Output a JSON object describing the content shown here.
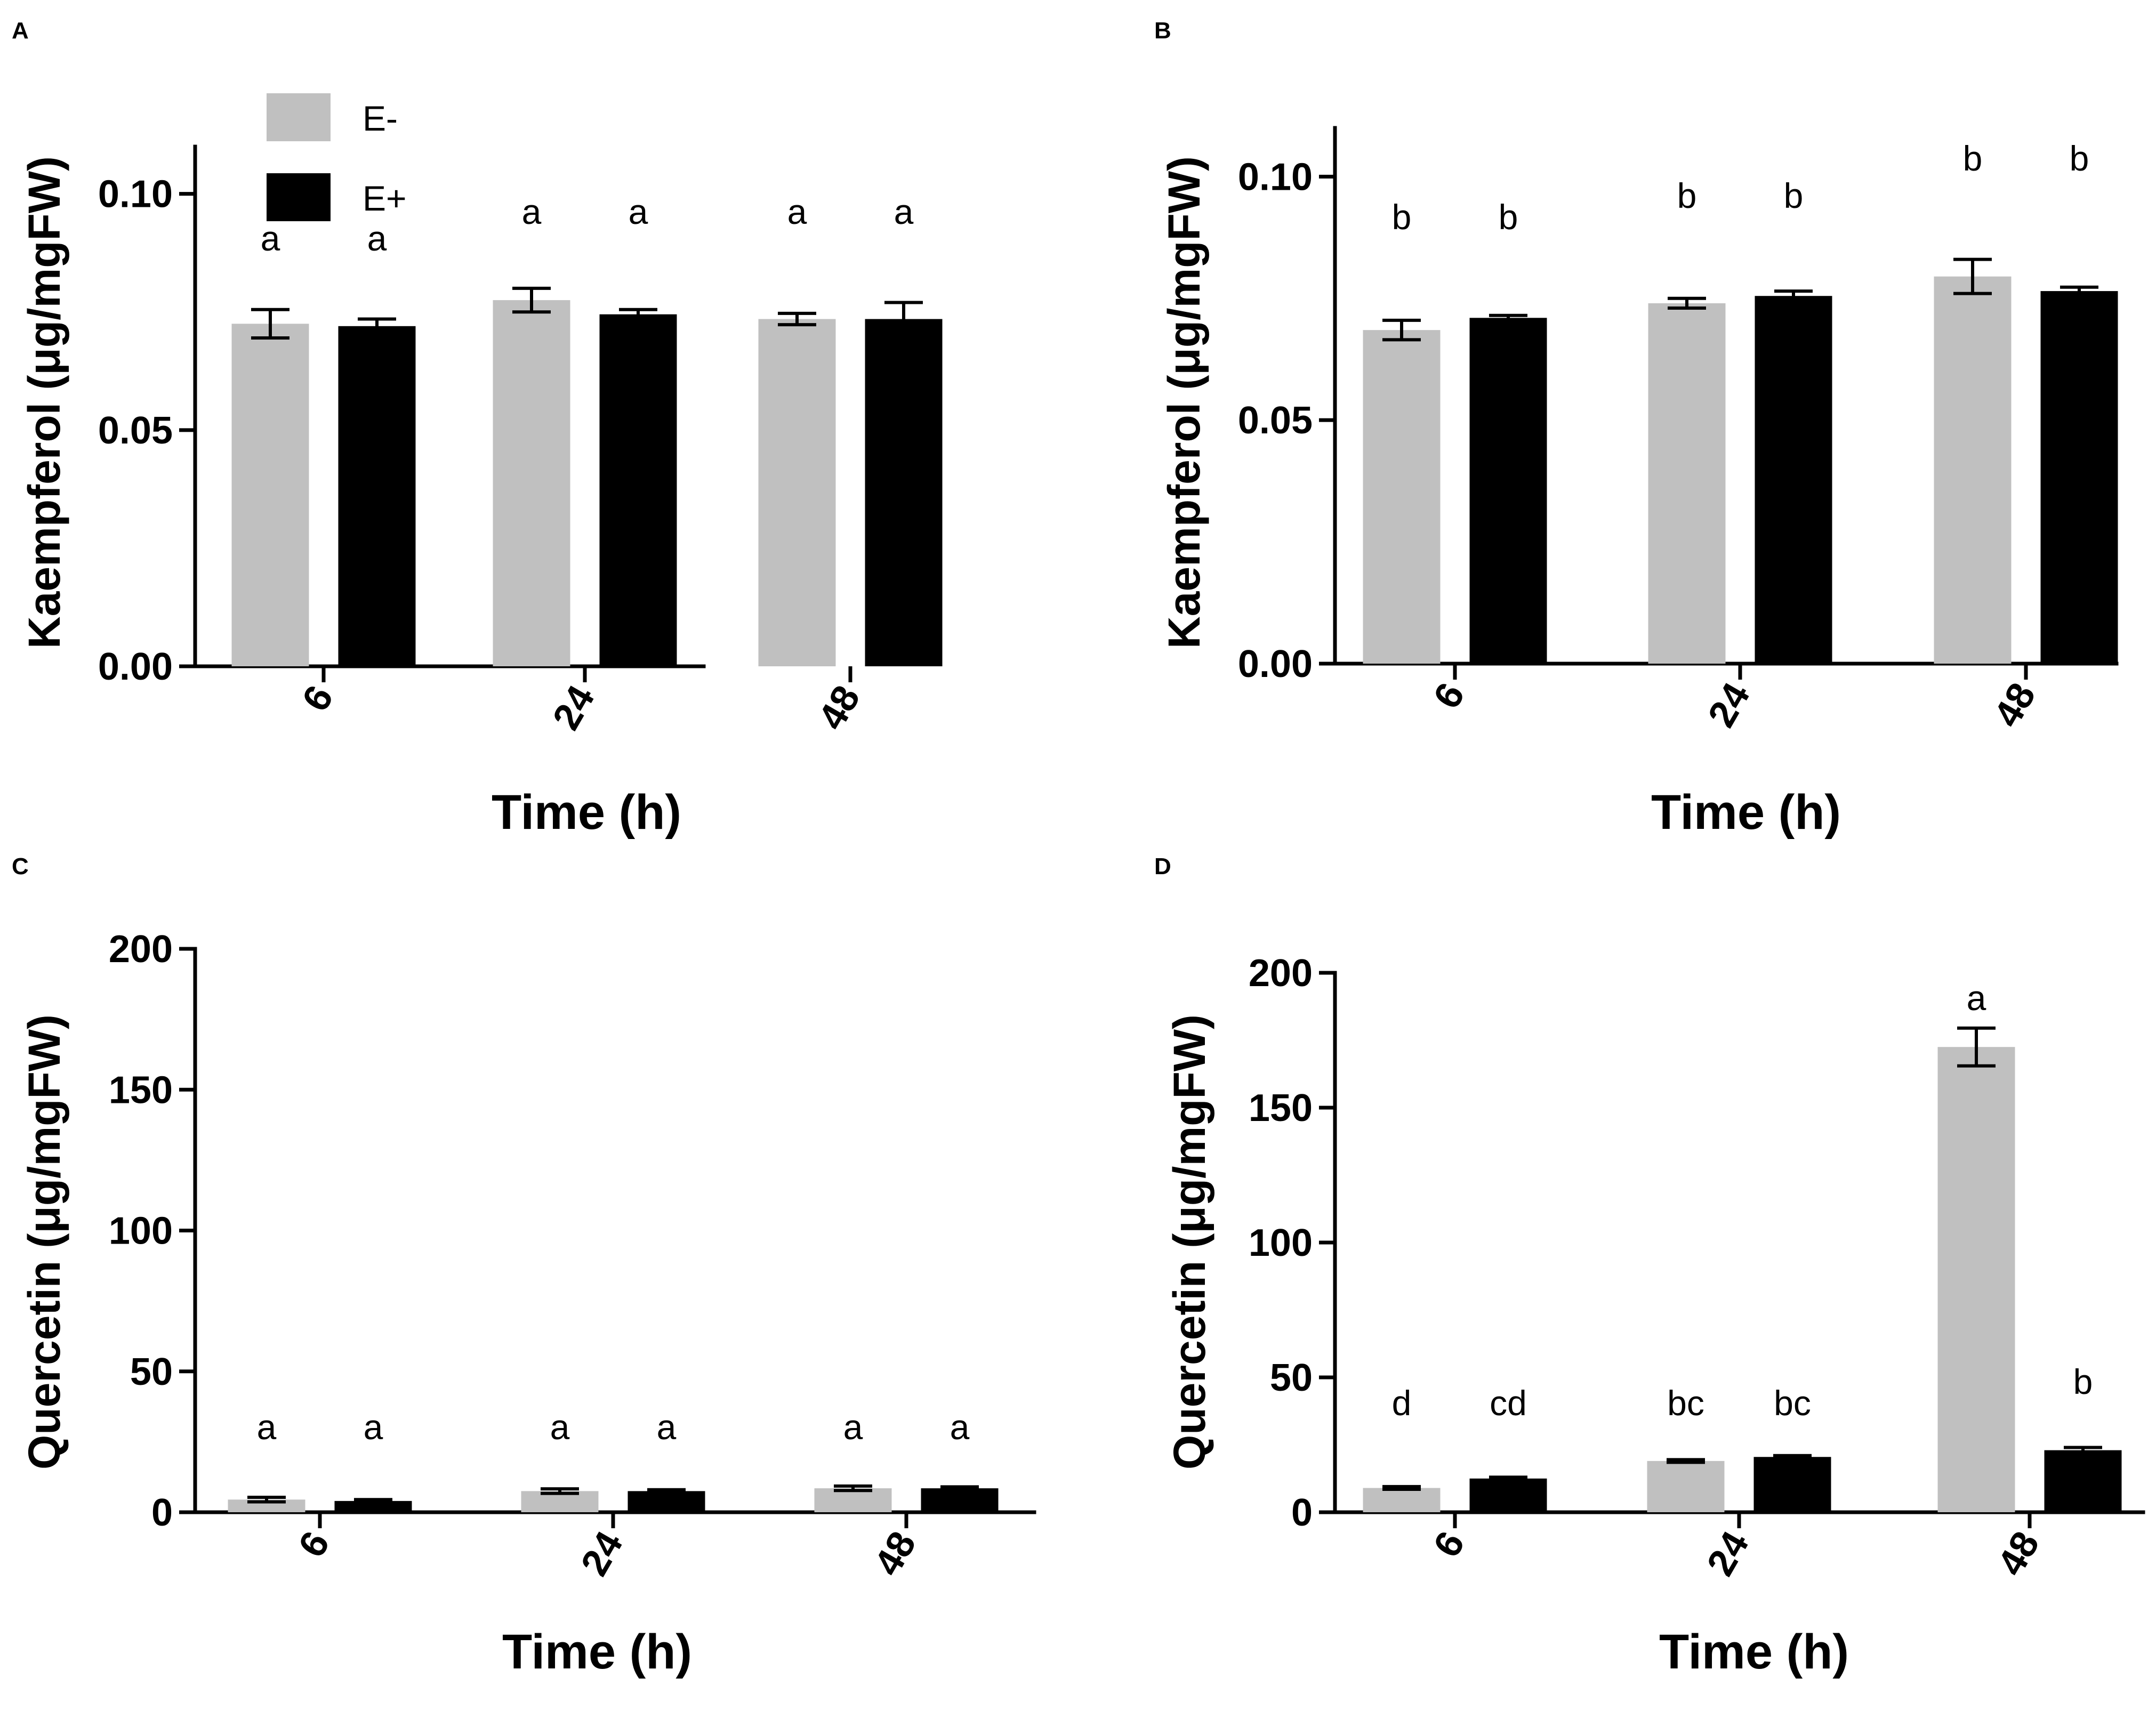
{
  "colors": {
    "E_minus": "#c0c0c0",
    "E_plus": "#000000",
    "axis": "#000000"
  },
  "legend": [
    {
      "label": "E-",
      "color": "#c0c0c0"
    },
    {
      "label": "E+",
      "color": "#000000"
    }
  ],
  "chart_data": [
    {
      "panel": "A",
      "type": "bar",
      "title": "",
      "xlabel": "Time (h)",
      "ylabel": "Kaempferol (μg/mgFW)",
      "categories": [
        "6",
        "24",
        "48"
      ],
      "ylim": [
        0,
        0.11
      ],
      "yticks": [
        0.0,
        0.05,
        0.1
      ],
      "yticklabels": [
        "0.00",
        "0.05",
        "0.10"
      ],
      "series": [
        {
          "name": "E-",
          "values": [
            0.0725,
            0.0775,
            0.0735
          ],
          "errors": [
            0.003,
            0.0025,
            0.0012
          ]
        },
        {
          "name": "E+",
          "values": [
            0.072,
            0.0745,
            0.0735
          ],
          "errors": [
            0.0015,
            0.001,
            0.0035
          ]
        }
      ],
      "significance": [
        [
          "a",
          "a"
        ],
        [
          "a",
          "a"
        ],
        [
          "a",
          "a"
        ]
      ]
    },
    {
      "panel": "B",
      "type": "bar",
      "title": "",
      "xlabel": "Time (h)",
      "ylabel": "Kaempferol (μg/mgFW)",
      "categories": [
        "6",
        "24",
        "48"
      ],
      "ylim": [
        0,
        0.11
      ],
      "yticks": [
        0.0,
        0.05,
        0.1
      ],
      "yticklabels": [
        "0.00",
        "0.05",
        "0.10"
      ],
      "series": [
        {
          "name": "E-",
          "values": [
            0.0685,
            0.074,
            0.0795
          ],
          "errors": [
            0.002,
            0.001,
            0.0035
          ]
        },
        {
          "name": "E+",
          "values": [
            0.071,
            0.0755,
            0.0765
          ],
          "errors": [
            0.0005,
            0.001,
            0.0008
          ]
        }
      ],
      "significance": [
        [
          "b",
          "b"
        ],
        [
          "b",
          "b"
        ],
        [
          "b",
          "b"
        ]
      ]
    },
    {
      "panel": "C",
      "type": "bar",
      "title": "",
      "xlabel": "Time (h)",
      "ylabel": "Quercetin (μg/mgFW)",
      "categories": [
        "6",
        "24",
        "48"
      ],
      "ylim": [
        0,
        200
      ],
      "yticks": [
        0,
        50,
        100,
        150,
        200
      ],
      "yticklabels": [
        "0",
        "50",
        "100",
        "150",
        "200"
      ],
      "series": [
        {
          "name": "E-",
          "values": [
            4.5,
            7.5,
            8.5
          ],
          "errors": [
            0.8,
            0.8,
            0.8
          ]
        },
        {
          "name": "E+",
          "values": [
            4.0,
            7.5,
            8.5
          ],
          "errors": [
            0.5,
            0.5,
            0.5
          ]
        }
      ],
      "significance": [
        [
          "a",
          "a"
        ],
        [
          "a",
          "a"
        ],
        [
          "a",
          "a"
        ]
      ]
    },
    {
      "panel": "D",
      "type": "bar",
      "title": "",
      "xlabel": "Time (h)",
      "ylabel": "Quercetin (μg/mgFW)",
      "categories": [
        "6",
        "24",
        "48"
      ],
      "ylim": [
        0,
        200
      ],
      "yticks": [
        0,
        50,
        100,
        150,
        200
      ],
      "yticklabels": [
        "0",
        "50",
        "100",
        "150",
        "200"
      ],
      "series": [
        {
          "name": "E-",
          "values": [
            9.0,
            19.0,
            172.5
          ],
          "errors": [
            0.5,
            0.5,
            7.0
          ]
        },
        {
          "name": "E+",
          "values": [
            12.5,
            20.5,
            23.0
          ],
          "errors": [
            0.5,
            0.5,
            1.0
          ]
        }
      ],
      "significance": [
        [
          "d",
          "cd"
        ],
        [
          "bc",
          "bc"
        ],
        [
          "a",
          "b"
        ]
      ]
    }
  ]
}
